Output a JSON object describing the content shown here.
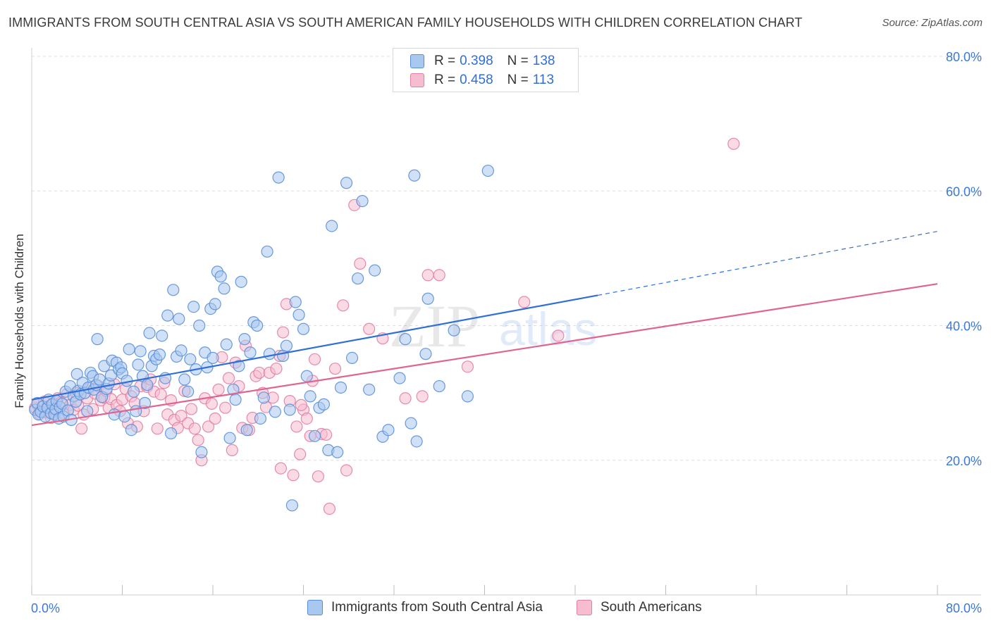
{
  "title": "IMMIGRANTS FROM SOUTH CENTRAL ASIA VS SOUTH AMERICAN FAMILY HOUSEHOLDS WITH CHILDREN CORRELATION CHART",
  "source": "Source: ZipAtlas.com",
  "watermark": {
    "zip": "ZIP",
    "atlas": "atlas"
  },
  "colors": {
    "blue_fill": "#a9c8f0",
    "blue_stroke": "#5a8fd8",
    "blue_line": "#2f6fd6",
    "pink_fill": "#f6bcd0",
    "pink_stroke": "#e27ea2",
    "pink_line": "#e0648e",
    "axis_label": "#3b78d8",
    "grid": "#dddddd"
  },
  "legend": {
    "r_label": "R =",
    "n_label": "N =",
    "series": [
      {
        "r": "0.398",
        "n": "138"
      },
      {
        "r": "0.458",
        "n": "113"
      }
    ]
  },
  "chart_data": {
    "type": "scatter",
    "xlabel": "",
    "ylabel": "Family Households with Children",
    "xlim": [
      0,
      80
    ],
    "ylim": [
      0,
      80
    ],
    "x_ticks": [
      "0.0%",
      "80.0%"
    ],
    "y_ticks": [
      {
        "value": 20,
        "label": "20.0%"
      },
      {
        "value": 40,
        "label": "40.0%"
      },
      {
        "value": 60,
        "label": "60.0%"
      },
      {
        "value": 80,
        "label": "80.0%"
      }
    ],
    "series": [
      {
        "name": "Immigrants from South Central Asia",
        "color": "blue",
        "trend": {
          "x0": 0,
          "y0": 29.0,
          "x1": 50,
          "y1": 44.5,
          "dash_to_x": 80,
          "dash_to_y": 54.0
        },
        "points": [
          [
            0.3,
            27.5
          ],
          [
            0.5,
            28.5
          ],
          [
            0.6,
            26.8
          ],
          [
            0.8,
            27.2
          ],
          [
            1.0,
            28.0
          ],
          [
            1.2,
            26.5
          ],
          [
            1.4,
            27.8
          ],
          [
            1.5,
            29.0
          ],
          [
            1.7,
            27.0
          ],
          [
            1.8,
            28.3
          ],
          [
            2.0,
            26.8
          ],
          [
            2.1,
            27.6
          ],
          [
            2.2,
            28.8
          ],
          [
            2.4,
            26.2
          ],
          [
            2.5,
            27.9
          ],
          [
            2.7,
            28.4
          ],
          [
            2.8,
            26.5
          ],
          [
            3.0,
            30.2
          ],
          [
            3.2,
            27.4
          ],
          [
            3.4,
            31.0
          ],
          [
            3.5,
            26.0
          ],
          [
            3.7,
            29.5
          ],
          [
            3.9,
            28.7
          ],
          [
            4.0,
            32.8
          ],
          [
            4.1,
            30.3
          ],
          [
            4.3,
            29.8
          ],
          [
            4.5,
            31.5
          ],
          [
            4.7,
            30.0
          ],
          [
            4.9,
            27.3
          ],
          [
            5.0,
            30.8
          ],
          [
            5.2,
            33.0
          ],
          [
            5.4,
            32.5
          ],
          [
            5.5,
            30.5
          ],
          [
            5.7,
            31.2
          ],
          [
            5.8,
            38.0
          ],
          [
            6.0,
            32.0
          ],
          [
            6.2,
            29.4
          ],
          [
            6.4,
            34.0
          ],
          [
            6.6,
            30.6
          ],
          [
            6.8,
            31.4
          ],
          [
            7.0,
            32.6
          ],
          [
            7.1,
            34.8
          ],
          [
            7.3,
            26.8
          ],
          [
            7.5,
            34.5
          ],
          [
            7.7,
            33.5
          ],
          [
            7.9,
            33.8
          ],
          [
            8.0,
            32.9
          ],
          [
            8.2,
            26.5
          ],
          [
            8.4,
            31.8
          ],
          [
            8.6,
            36.5
          ],
          [
            8.8,
            24.5
          ],
          [
            9.0,
            30.2
          ],
          [
            9.2,
            27.3
          ],
          [
            9.4,
            34.2
          ],
          [
            9.6,
            36.2
          ],
          [
            9.8,
            32.5
          ],
          [
            10.0,
            28.5
          ],
          [
            10.2,
            31.2
          ],
          [
            10.4,
            38.9
          ],
          [
            10.6,
            34.0
          ],
          [
            10.8,
            35.5
          ],
          [
            11.0,
            35.0
          ],
          [
            11.3,
            35.7
          ],
          [
            11.5,
            38.5
          ],
          [
            11.8,
            32.2
          ],
          [
            12.0,
            41.5
          ],
          [
            12.3,
            24.0
          ],
          [
            12.5,
            45.3
          ],
          [
            12.8,
            35.4
          ],
          [
            13.0,
            41.0
          ],
          [
            13.2,
            36.3
          ],
          [
            13.5,
            32.0
          ],
          [
            13.8,
            30.2
          ],
          [
            14.0,
            35.0
          ],
          [
            14.3,
            42.8
          ],
          [
            14.5,
            33.5
          ],
          [
            14.8,
            40.0
          ],
          [
            15.0,
            21.2
          ],
          [
            15.3,
            36.0
          ],
          [
            15.5,
            33.8
          ],
          [
            15.8,
            42.5
          ],
          [
            16.0,
            35.2
          ],
          [
            16.2,
            43.2
          ],
          [
            16.4,
            48.0
          ],
          [
            16.7,
            47.3
          ],
          [
            17.0,
            45.5
          ],
          [
            17.2,
            37.2
          ],
          [
            17.5,
            23.3
          ],
          [
            17.8,
            30.5
          ],
          [
            18.0,
            29.0
          ],
          [
            18.3,
            34.0
          ],
          [
            18.5,
            46.5
          ],
          [
            18.8,
            38.0
          ],
          [
            19.0,
            24.5
          ],
          [
            19.3,
            36.0
          ],
          [
            19.6,
            40.5
          ],
          [
            19.9,
            40.0
          ],
          [
            20.2,
            26.2
          ],
          [
            20.5,
            29.3
          ],
          [
            20.8,
            51.0
          ],
          [
            21.0,
            35.8
          ],
          [
            21.5,
            27.2
          ],
          [
            21.8,
            62.0
          ],
          [
            22.2,
            35.5
          ],
          [
            22.5,
            37.0
          ],
          [
            22.8,
            27.5
          ],
          [
            23.0,
            13.3
          ],
          [
            23.3,
            43.5
          ],
          [
            23.6,
            41.6
          ],
          [
            24.0,
            39.5
          ],
          [
            24.3,
            32.5
          ],
          [
            24.6,
            29.5
          ],
          [
            25.0,
            23.6
          ],
          [
            25.4,
            27.8
          ],
          [
            25.8,
            28.3
          ],
          [
            26.2,
            21.5
          ],
          [
            26.5,
            54.8
          ],
          [
            27.0,
            21.2
          ],
          [
            27.3,
            30.8
          ],
          [
            27.8,
            61.2
          ],
          [
            28.3,
            35.2
          ],
          [
            28.8,
            47.0
          ],
          [
            29.2,
            58.5
          ],
          [
            29.8,
            30.5
          ],
          [
            30.3,
            48.2
          ],
          [
            31.0,
            23.5
          ],
          [
            31.5,
            24.5
          ],
          [
            32.5,
            32.2
          ],
          [
            33.0,
            38.0
          ],
          [
            33.5,
            25.5
          ],
          [
            33.8,
            62.3
          ],
          [
            34.0,
            22.8
          ],
          [
            34.8,
            35.8
          ],
          [
            35.0,
            44.0
          ],
          [
            36.0,
            31.0
          ],
          [
            37.3,
            39.3
          ],
          [
            38.5,
            29.5
          ],
          [
            40.3,
            63.0
          ]
        ]
      },
      {
        "name": "South Americans",
        "color": "pink",
        "trend": {
          "x0": 0,
          "y0": 25.2,
          "x1": 80,
          "y1": 46.2
        },
        "points": [
          [
            0.3,
            27.8
          ],
          [
            0.5,
            28.3
          ],
          [
            0.7,
            26.9
          ],
          [
            0.9,
            27.5
          ],
          [
            1.1,
            28.7
          ],
          [
            1.3,
            27.1
          ],
          [
            1.5,
            28.0
          ],
          [
            1.7,
            26.3
          ],
          [
            1.9,
            28.5
          ],
          [
            2.1,
            27.4
          ],
          [
            2.3,
            29.2
          ],
          [
            2.6,
            28.6
          ],
          [
            2.8,
            27.0
          ],
          [
            3.1,
            29.8
          ],
          [
            3.4,
            28.2
          ],
          [
            3.7,
            27.5
          ],
          [
            3.9,
            30.0
          ],
          [
            4.1,
            28.1
          ],
          [
            4.4,
            24.7
          ],
          [
            4.6,
            26.8
          ],
          [
            4.9,
            29.2
          ],
          [
            5.1,
            30.7
          ],
          [
            5.4,
            27.6
          ],
          [
            5.6,
            29.9
          ],
          [
            5.9,
            31.0
          ],
          [
            6.1,
            28.9
          ],
          [
            6.4,
            29.3
          ],
          [
            6.6,
            30.3
          ],
          [
            6.8,
            27.8
          ],
          [
            7.0,
            29.1
          ],
          [
            7.3,
            31.3
          ],
          [
            7.5,
            28.2
          ],
          [
            7.8,
            27.3
          ],
          [
            8.0,
            29.0
          ],
          [
            8.3,
            30.6
          ],
          [
            8.5,
            25.5
          ],
          [
            8.8,
            29.5
          ],
          [
            9.1,
            28.5
          ],
          [
            9.3,
            25.0
          ],
          [
            9.6,
            31.0
          ],
          [
            9.9,
            27.3
          ],
          [
            10.2,
            30.9
          ],
          [
            10.5,
            32.0
          ],
          [
            10.8,
            30.2
          ],
          [
            11.1,
            24.7
          ],
          [
            11.4,
            29.8
          ],
          [
            11.7,
            31.5
          ],
          [
            12.0,
            26.8
          ],
          [
            12.3,
            28.9
          ],
          [
            12.6,
            26.0
          ],
          [
            12.9,
            24.8
          ],
          [
            13.2,
            26.6
          ],
          [
            13.5,
            30.3
          ],
          [
            13.8,
            25.5
          ],
          [
            14.1,
            27.6
          ],
          [
            14.4,
            24.7
          ],
          [
            14.7,
            23.0
          ],
          [
            15.0,
            20.0
          ],
          [
            15.3,
            29.2
          ],
          [
            15.6,
            25.0
          ],
          [
            15.9,
            28.4
          ],
          [
            16.2,
            26.2
          ],
          [
            16.5,
            30.5
          ],
          [
            16.8,
            35.3
          ],
          [
            17.1,
            27.8
          ],
          [
            17.4,
            32.2
          ],
          [
            17.7,
            21.5
          ],
          [
            18.0,
            34.5
          ],
          [
            18.3,
            31.0
          ],
          [
            18.6,
            24.8
          ],
          [
            18.9,
            37.0
          ],
          [
            19.2,
            24.5
          ],
          [
            19.5,
            26.3
          ],
          [
            19.8,
            32.5
          ],
          [
            20.1,
            33.0
          ],
          [
            20.4,
            30.0
          ],
          [
            20.7,
            27.9
          ],
          [
            21.0,
            33.0
          ],
          [
            21.3,
            29.3
          ],
          [
            21.6,
            33.6
          ],
          [
            21.9,
            35.5
          ],
          [
            22.2,
            39.0
          ],
          [
            22.5,
            43.2
          ],
          [
            22.8,
            28.8
          ],
          [
            23.1,
            17.8
          ],
          [
            23.4,
            25.0
          ],
          [
            23.7,
            20.9
          ],
          [
            24.0,
            27.5
          ],
          [
            24.3,
            26.2
          ],
          [
            24.6,
            23.6
          ],
          [
            25.0,
            35.0
          ],
          [
            25.3,
            17.6
          ],
          [
            25.6,
            23.9
          ],
          [
            26.0,
            23.8
          ],
          [
            26.3,
            12.8
          ],
          [
            26.8,
            33.6
          ],
          [
            27.5,
            43.0
          ],
          [
            27.8,
            18.5
          ],
          [
            28.5,
            57.9
          ],
          [
            29.0,
            49.2
          ],
          [
            29.8,
            39.5
          ],
          [
            31.0,
            38.1
          ],
          [
            33.0,
            29.2
          ],
          [
            34.5,
            29.5
          ],
          [
            35.0,
            47.5
          ],
          [
            36.0,
            47.5
          ],
          [
            38.5,
            33.9
          ],
          [
            43.5,
            43.5
          ],
          [
            46.5,
            38.5
          ],
          [
            62.0,
            67.0
          ],
          [
            24.8,
            31.8
          ],
          [
            23.8,
            28.2
          ],
          [
            22.0,
            18.8
          ]
        ]
      }
    ],
    "legend_labels": [
      "Immigrants from South Central Asia",
      "South Americans"
    ]
  }
}
